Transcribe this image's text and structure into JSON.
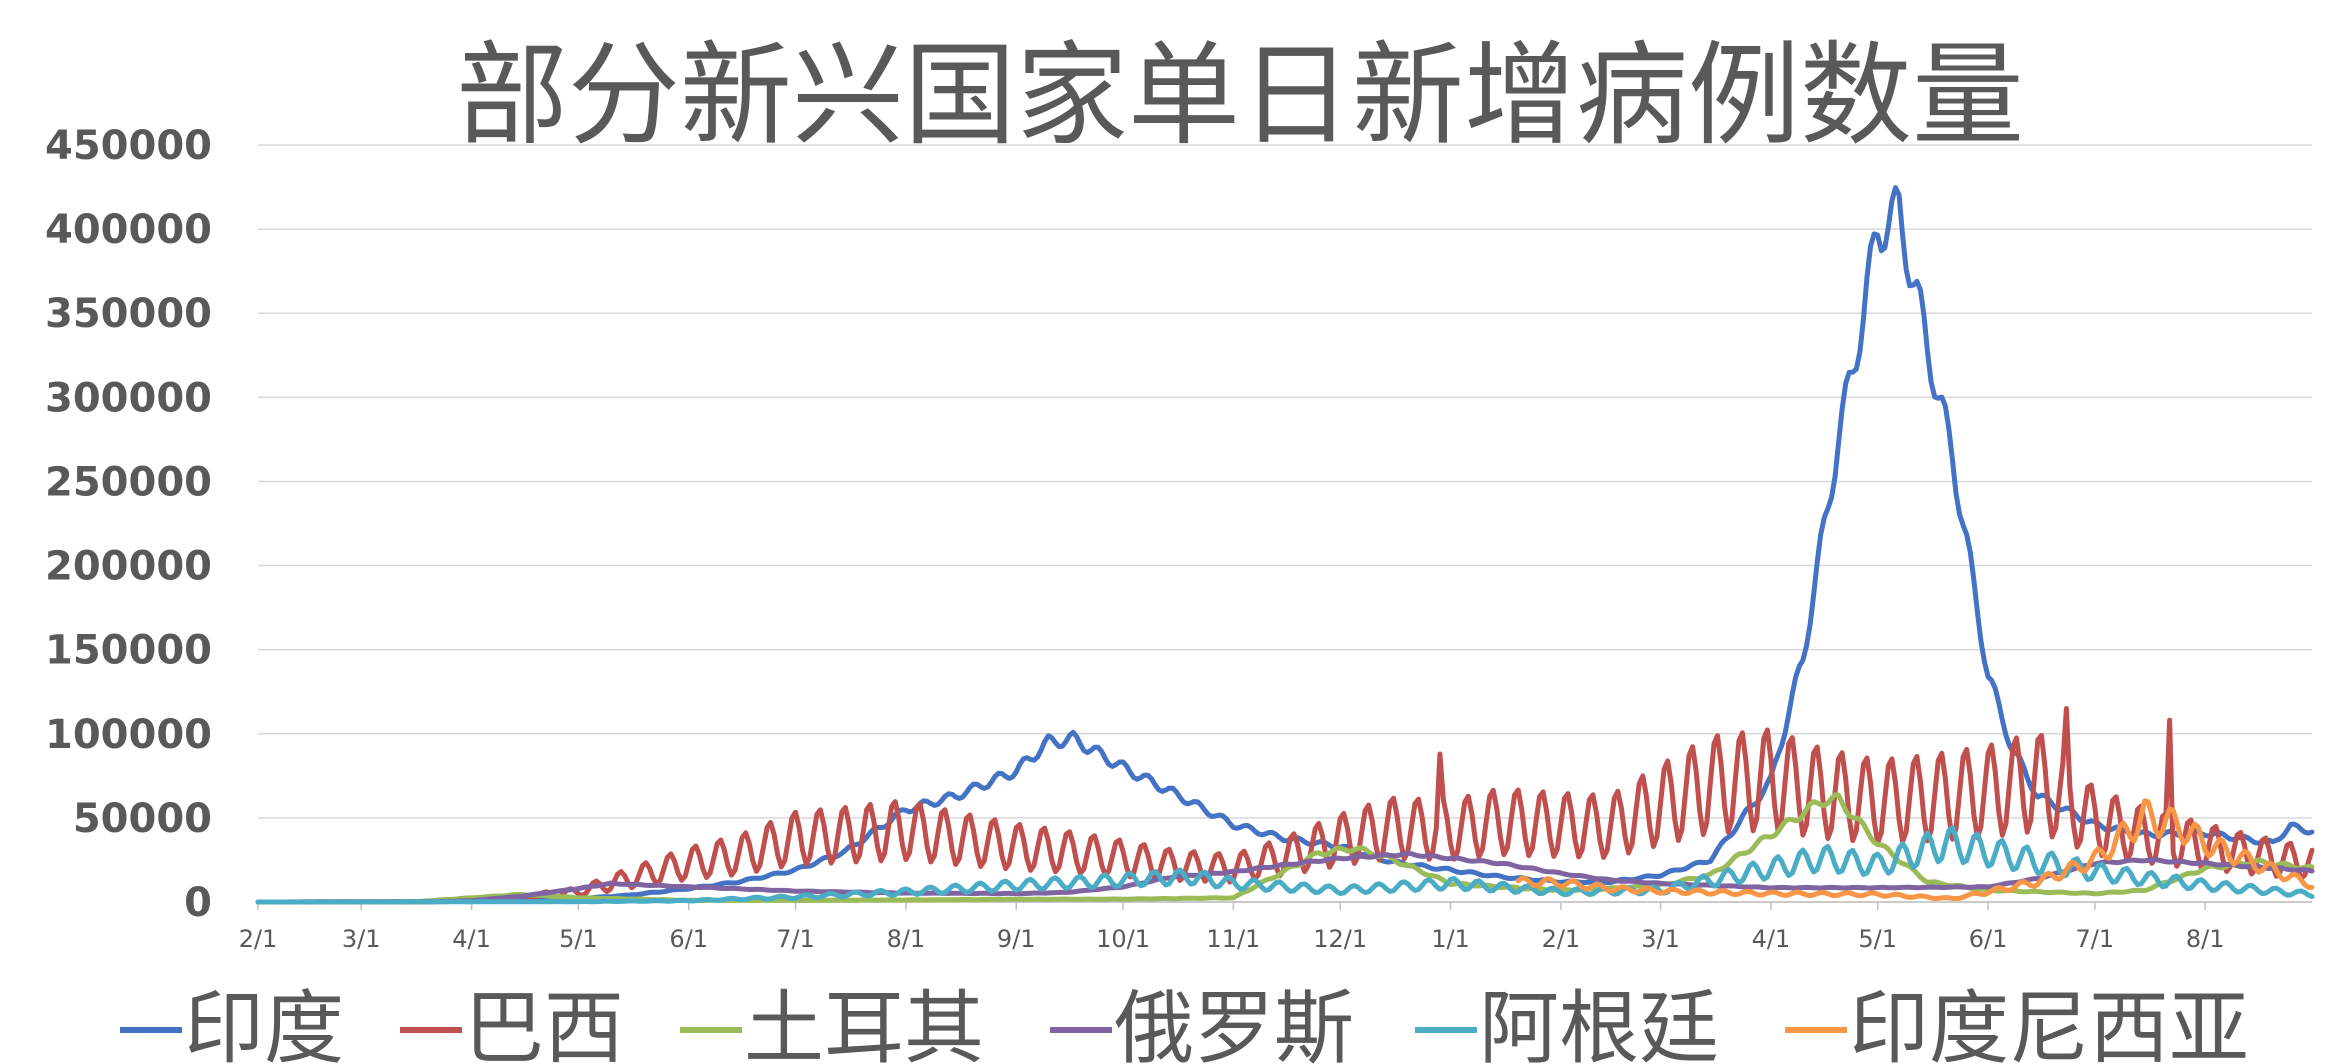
{
  "chart_data": {
    "type": "line",
    "title": "部分新兴国家单日新增病例数量",
    "xlabel": "",
    "ylabel": "",
    "ylim": [
      0,
      450000
    ],
    "yticks": [
      0,
      50000,
      100000,
      150000,
      200000,
      250000,
      300000,
      350000,
      400000,
      450000
    ],
    "ytick_labels": [
      "0",
      "50000",
      "100000",
      "150000",
      "200000",
      "250000",
      "300000",
      "350000",
      "400000",
      "450000"
    ],
    "xlim": [
      "2020-02-01",
      "2021-08-31"
    ],
    "x_ticks": [
      "2020-02-01",
      "2020-03-01",
      "2020-04-01",
      "2020-05-01",
      "2020-06-01",
      "2020-07-01",
      "2020-08-01",
      "2020-09-01",
      "2020-10-01",
      "2020-11-01",
      "2020-12-01",
      "2021-01-01",
      "2021-02-01",
      "2021-03-01",
      "2021-04-01",
      "2021-05-01",
      "2021-06-01",
      "2021-07-01",
      "2021-08-01"
    ],
    "x_tick_labels": [
      "2/1",
      "3/1",
      "4/1",
      "5/1",
      "6/1",
      "7/1",
      "8/1",
      "9/1",
      "10/1",
      "11/1",
      "12/1",
      "1/1",
      "2/1",
      "3/1",
      "4/1",
      "5/1",
      "6/1",
      "7/1",
      "8/1"
    ],
    "grid": true,
    "legend_position": "bottom",
    "series": [
      {
        "name": "印度",
        "color": "#4472C4",
        "weekly_amplitude": 0.04,
        "points": [
          [
            "2020-02-01",
            0
          ],
          [
            "2020-03-15",
            100
          ],
          [
            "2020-04-01",
            500
          ],
          [
            "2020-04-15",
            1000
          ],
          [
            "2020-05-01",
            2000
          ],
          [
            "2020-05-15",
            4000
          ],
          [
            "2020-06-01",
            8000
          ],
          [
            "2020-06-15",
            12000
          ],
          [
            "2020-07-01",
            19000
          ],
          [
            "2020-07-15",
            30000
          ],
          [
            "2020-08-01",
            55000
          ],
          [
            "2020-08-15",
            63000
          ],
          [
            "2020-09-01",
            78000
          ],
          [
            "2020-09-10",
            95000
          ],
          [
            "2020-09-17",
            97000
          ],
          [
            "2020-10-01",
            80000
          ],
          [
            "2020-10-15",
            65000
          ],
          [
            "2020-11-01",
            46000
          ],
          [
            "2020-11-15",
            38000
          ],
          [
            "2020-12-01",
            33000
          ],
          [
            "2020-12-15",
            24000
          ],
          [
            "2021-01-01",
            19000
          ],
          [
            "2021-01-15",
            15000
          ],
          [
            "2021-02-01",
            12000
          ],
          [
            "2021-02-15",
            12000
          ],
          [
            "2021-03-01",
            16000
          ],
          [
            "2021-03-15",
            25000
          ],
          [
            "2021-04-01",
            72000
          ],
          [
            "2021-04-10",
            145000
          ],
          [
            "2021-04-20",
            275000
          ],
          [
            "2021-04-27",
            350000
          ],
          [
            "2021-05-01",
            400000
          ],
          [
            "2021-05-07",
            410000
          ],
          [
            "2021-05-15",
            330000
          ],
          [
            "2021-05-22",
            265000
          ],
          [
            "2021-06-01",
            135000
          ],
          [
            "2021-06-08",
            90000
          ],
          [
            "2021-06-15",
            63000
          ],
          [
            "2021-07-01",
            46000
          ],
          [
            "2021-07-15",
            40000
          ],
          [
            "2021-08-01",
            41000
          ],
          [
            "2021-08-20",
            35000
          ],
          [
            "2021-08-25",
            45000
          ],
          [
            "2021-08-31",
            42000
          ]
        ]
      },
      {
        "name": "巴西",
        "color": "#C0504D",
        "weekly_amplitude": 0.42,
        "points": [
          [
            "2020-02-01",
            0
          ],
          [
            "2020-03-20",
            200
          ],
          [
            "2020-04-01",
            1500
          ],
          [
            "2020-04-15",
            3000
          ],
          [
            "2020-05-01",
            6000
          ],
          [
            "2020-05-15",
            14000
          ],
          [
            "2020-06-01",
            23000
          ],
          [
            "2020-06-15",
            28000
          ],
          [
            "2020-07-01",
            38000
          ],
          [
            "2020-07-15",
            40000
          ],
          [
            "2020-08-01",
            43000
          ],
          [
            "2020-08-15",
            38000
          ],
          [
            "2020-09-01",
            33000
          ],
          [
            "2020-09-15",
            30000
          ],
          [
            "2020-10-01",
            26000
          ],
          [
            "2020-10-15",
            22000
          ],
          [
            "2020-11-01",
            20000
          ],
          [
            "2020-11-15",
            27000
          ],
          [
            "2020-12-01",
            37000
          ],
          [
            "2020-12-15",
            44000
          ],
          [
            "2021-01-01",
            43000
          ],
          [
            "2021-01-15",
            48000
          ],
          [
            "2021-02-01",
            46000
          ],
          [
            "2021-02-15",
            45000
          ],
          [
            "2021-03-01",
            58000
          ],
          [
            "2021-03-15",
            70000
          ],
          [
            "2021-04-01",
            73000
          ],
          [
            "2021-04-15",
            65000
          ],
          [
            "2021-05-01",
            60000
          ],
          [
            "2021-05-15",
            62000
          ],
          [
            "2021-06-01",
            66000
          ],
          [
            "2021-06-15",
            72000
          ],
          [
            "2021-07-01",
            48000
          ],
          [
            "2021-07-15",
            40000
          ],
          [
            "2021-08-01",
            33000
          ],
          [
            "2021-08-15",
            28000
          ],
          [
            "2021-08-31",
            23000
          ]
        ],
        "spikes": [
          [
            "2021-06-23",
            115000
          ],
          [
            "2021-07-22",
            108000
          ],
          [
            "2020-12-29",
            88000
          ]
        ]
      },
      {
        "name": "土耳其",
        "color": "#9BBB59",
        "weekly_amplitude": 0.05,
        "points": [
          [
            "2020-02-01",
            0
          ],
          [
            "2020-03-15",
            0
          ],
          [
            "2020-04-01",
            2500
          ],
          [
            "2020-04-15",
            4500
          ],
          [
            "2020-05-01",
            2500
          ],
          [
            "2020-06-01",
            1000
          ],
          [
            "2020-07-01",
            1000
          ],
          [
            "2020-08-01",
            1200
          ],
          [
            "2020-09-01",
            1600
          ],
          [
            "2020-10-01",
            1700
          ],
          [
            "2020-11-01",
            2500
          ],
          [
            "2020-11-25",
            29000
          ],
          [
            "2020-12-05",
            32000
          ],
          [
            "2020-12-15",
            26000
          ],
          [
            "2021-01-01",
            11000
          ],
          [
            "2021-01-15",
            9000
          ],
          [
            "2021-02-01",
            7000
          ],
          [
            "2021-02-15",
            8000
          ],
          [
            "2021-03-01",
            10000
          ],
          [
            "2021-03-15",
            16000
          ],
          [
            "2021-04-01",
            40000
          ],
          [
            "2021-04-15",
            60000
          ],
          [
            "2021-04-20",
            61000
          ],
          [
            "2021-05-01",
            35000
          ],
          [
            "2021-05-15",
            12000
          ],
          [
            "2021-06-01",
            7000
          ],
          [
            "2021-07-01",
            5000
          ],
          [
            "2021-07-15",
            7000
          ],
          [
            "2021-08-01",
            20000
          ],
          [
            "2021-08-15",
            24000
          ],
          [
            "2021-08-31",
            20000
          ]
        ]
      },
      {
        "name": "俄罗斯",
        "color": "#8064A2",
        "weekly_amplitude": 0.02,
        "points": [
          [
            "2020-02-01",
            0
          ],
          [
            "2020-03-20",
            100
          ],
          [
            "2020-04-01",
            800
          ],
          [
            "2020-04-15",
            3500
          ],
          [
            "2020-05-01",
            8000
          ],
          [
            "2020-05-10",
            11000
          ],
          [
            "2020-06-01",
            9000
          ],
          [
            "2020-07-01",
            6500
          ],
          [
            "2020-08-01",
            5300
          ],
          [
            "2020-09-01",
            5000
          ],
          [
            "2020-09-15",
            5700
          ],
          [
            "2020-10-01",
            9000
          ],
          [
            "2020-10-15",
            15000
          ],
          [
            "2020-11-01",
            18000
          ],
          [
            "2020-11-15",
            22000
          ],
          [
            "2020-12-01",
            26000
          ],
          [
            "2020-12-20",
            28500
          ],
          [
            "2021-01-01",
            26000
          ],
          [
            "2021-01-15",
            23000
          ],
          [
            "2021-02-01",
            17000
          ],
          [
            "2021-02-15",
            13000
          ],
          [
            "2021-03-01",
            11000
          ],
          [
            "2021-04-01",
            8500
          ],
          [
            "2021-05-01",
            8500
          ],
          [
            "2021-06-01",
            9000
          ],
          [
            "2021-06-15",
            14000
          ],
          [
            "2021-07-01",
            23000
          ],
          [
            "2021-07-15",
            25000
          ],
          [
            "2021-08-01",
            23000
          ],
          [
            "2021-08-31",
            18500
          ]
        ]
      },
      {
        "name": "阿根廷",
        "color": "#4BACC6",
        "weekly_amplitude": 0.3,
        "points": [
          [
            "2020-02-01",
            0
          ],
          [
            "2020-03-25",
            100
          ],
          [
            "2020-05-01",
            200
          ],
          [
            "2020-06-01",
            800
          ],
          [
            "2020-07-01",
            3000
          ],
          [
            "2020-08-01",
            6000
          ],
          [
            "2020-09-01",
            10000
          ],
          [
            "2020-10-01",
            13000
          ],
          [
            "2020-10-20",
            15000
          ],
          [
            "2020-11-01",
            11000
          ],
          [
            "2020-12-01",
            7000
          ],
          [
            "2021-01-01",
            11000
          ],
          [
            "2021-02-01",
            6000
          ],
          [
            "2021-03-01",
            7000
          ],
          [
            "2021-04-01",
            20000
          ],
          [
            "2021-04-15",
            26000
          ],
          [
            "2021-05-01",
            22000
          ],
          [
            "2021-05-20",
            35000
          ],
          [
            "2021-06-01",
            30000
          ],
          [
            "2021-06-15",
            24000
          ],
          [
            "2021-07-01",
            18000
          ],
          [
            "2021-07-15",
            14000
          ],
          [
            "2021-08-01",
            10000
          ],
          [
            "2021-08-31",
            4500
          ]
        ]
      },
      {
        "name": "印度尼西亚",
        "color": "#F79646",
        "weekly_amplitude": 0.2,
        "points": [
          [
            "2021-01-20",
            12000
          ],
          [
            "2021-02-01",
            11500
          ],
          [
            "2021-02-15",
            8000
          ],
          [
            "2021-03-01",
            6500
          ],
          [
            "2021-04-01",
            5000
          ],
          [
            "2021-05-01",
            4500
          ],
          [
            "2021-05-22",
            2000
          ],
          [
            "2021-06-01",
            6000
          ],
          [
            "2021-06-15",
            12000
          ],
          [
            "2021-07-01",
            25000
          ],
          [
            "2021-07-15",
            51000
          ],
          [
            "2021-07-25",
            45000
          ],
          [
            "2021-08-01",
            35000
          ],
          [
            "2021-08-15",
            23000
          ],
          [
            "2021-08-31",
            10000
          ]
        ]
      }
    ]
  }
}
